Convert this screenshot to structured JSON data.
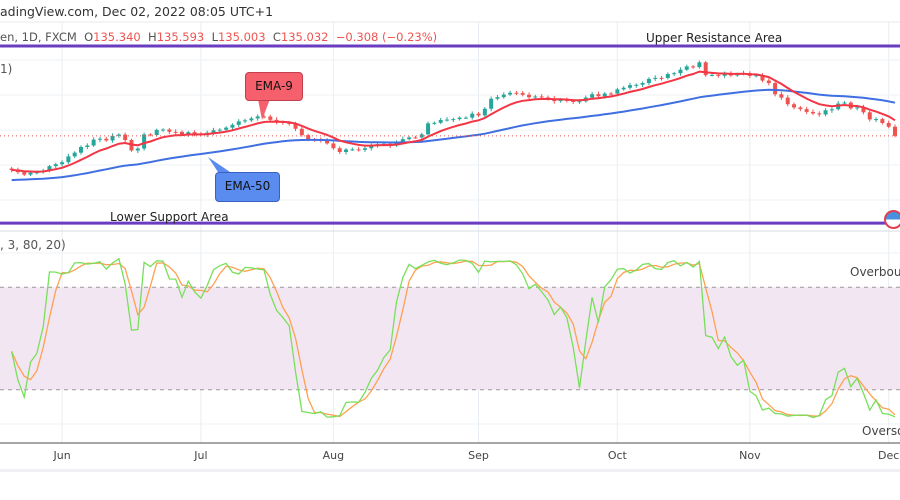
{
  "header": {
    "source_line": "adingView.com, Dec 02, 2022 08:05 UTC+1",
    "symbol_line": "en, 1D, FXCM",
    "o_label": "O",
    "o": "135.340",
    "h_label": "H",
    "h": "135.593",
    "l_label": "L",
    "l": "135.003",
    "c_label": "C",
    "c": "135.032",
    "change": "−0.308 (−0.23%)"
  },
  "ema_legend": "1)",
  "stoch_legend": ", 3, 80, 20)",
  "annotations": {
    "upper": "Upper Resistance Area",
    "lower": "Lower Support Area",
    "ema9": "EMA-9",
    "ema50": "EMA-50",
    "overbought": "Overbough",
    "oversold": "Overso"
  },
  "colors": {
    "up": "#26a69a",
    "down": "#ef5350",
    "ema9": "#f23645",
    "ema50": "#3f6fe0",
    "zone_line": "#6a3cc0",
    "stoch_k": "#77e05a",
    "stoch_d": "#ffa050",
    "stoch_band": "#f3e6f3"
  },
  "chart_data": {
    "type": "candlestick",
    "timeframe": "1D",
    "closes_keypoints": [
      [
        "2022-05-20",
        127.9
      ],
      [
        "2022-05-24",
        126.9
      ],
      [
        "2022-06-01",
        129.9
      ],
      [
        "2022-06-08",
        134.0
      ],
      [
        "2022-06-14",
        135.4
      ],
      [
        "2022-06-16",
        132.1
      ],
      [
        "2022-06-22",
        136.3
      ],
      [
        "2022-07-01",
        135.2
      ],
      [
        "2022-07-14",
        139.0
      ],
      [
        "2022-07-21",
        137.3
      ],
      [
        "2022-07-29",
        133.2
      ],
      [
        "2022-08-02",
        131.6
      ],
      [
        "2022-08-10",
        132.9
      ],
      [
        "2022-08-15",
        133.3
      ],
      [
        "2022-08-22",
        137.5
      ],
      [
        "2022-09-01",
        139.6
      ],
      [
        "2022-09-07",
        144.0
      ],
      [
        "2022-09-22",
        142.4
      ],
      [
        "2022-10-03",
        144.8
      ],
      [
        "2022-10-20",
        150.0
      ],
      [
        "2022-10-21",
        147.6
      ],
      [
        "2022-11-02",
        147.9
      ],
      [
        "2022-11-10",
        141.0
      ],
      [
        "2022-11-15",
        139.3
      ],
      [
        "2022-11-21",
        142.0
      ],
      [
        "2022-11-30",
        138.0
      ],
      [
        "2022-12-02",
        135.0
      ]
    ],
    "last_close": 135.032,
    "upper_resistance": 153.8,
    "lower_support": 116.8,
    "indicators": [
      {
        "name": "EMA",
        "length": 9
      },
      {
        "name": "EMA",
        "length": 50
      },
      {
        "name": "Stochastic",
        "levels": [
          80,
          20
        ]
      }
    ],
    "x_tick_labels": [
      "Jun",
      "Jul",
      "Aug",
      "Sep",
      "Oct",
      "Nov",
      "Dec"
    ]
  }
}
